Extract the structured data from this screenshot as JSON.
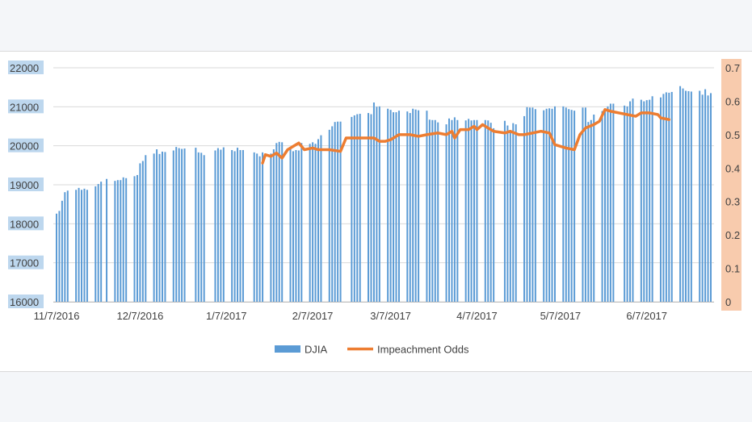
{
  "chart_data": {
    "type": "bar",
    "title": "",
    "xlabel": "",
    "ylabel": "",
    "ylim": [
      16000,
      22000
    ],
    "y_ticks": [
      "22000",
      "21000",
      "20000",
      "19000",
      "18000",
      "17000",
      "16000"
    ],
    "y2lim": [
      0,
      0.7
    ],
    "y2_ticks": [
      "0.7",
      "0.6",
      "0.5",
      "0.4",
      "0.3",
      "0.2",
      "0.1",
      "0"
    ],
    "x_start": "2016-11-07",
    "x_end": "2017-06-30",
    "x_ticks": [
      {
        "date": "2016-11-07",
        "label": "11/7/2016"
      },
      {
        "date": "2016-12-07",
        "label": "12/7/2016"
      },
      {
        "date": "2017-01-07",
        "label": "1/7/2017"
      },
      {
        "date": "2017-02-07",
        "label": "2/7/2017"
      },
      {
        "date": "2017-03-07",
        "label": "3/7/2017"
      },
      {
        "date": "2017-04-07",
        "label": "4/7/2017"
      },
      {
        "date": "2017-05-07",
        "label": "5/7/2017"
      },
      {
        "date": "2017-06-07",
        "label": "6/7/2017"
      }
    ],
    "grid": true,
    "legend_position": "bottom",
    "series": [
      {
        "name": "DJIA",
        "type": "bar",
        "axis": "left",
        "color": "#5b9bd5",
        "points": [
          [
            "2016-11-07",
            18260
          ],
          [
            "2016-11-08",
            18330
          ],
          [
            "2016-11-09",
            18590
          ],
          [
            "2016-11-10",
            18810
          ],
          [
            "2016-11-11",
            18850
          ],
          [
            "2016-11-14",
            18870
          ],
          [
            "2016-11-15",
            18920
          ],
          [
            "2016-11-16",
            18870
          ],
          [
            "2016-11-17",
            18900
          ],
          [
            "2016-11-18",
            18870
          ],
          [
            "2016-11-21",
            18960
          ],
          [
            "2016-11-22",
            19020
          ],
          [
            "2016-11-23",
            19080
          ],
          [
            "2016-11-25",
            19150
          ],
          [
            "2016-11-28",
            19100
          ],
          [
            "2016-11-29",
            19120
          ],
          [
            "2016-11-30",
            19120
          ],
          [
            "2016-12-01",
            19190
          ],
          [
            "2016-12-02",
            19170
          ],
          [
            "2016-12-05",
            19220
          ],
          [
            "2016-12-06",
            19250
          ],
          [
            "2016-12-07",
            19550
          ],
          [
            "2016-12-08",
            19610
          ],
          [
            "2016-12-09",
            19760
          ],
          [
            "2016-12-12",
            19800
          ],
          [
            "2016-12-13",
            19910
          ],
          [
            "2016-12-14",
            19790
          ],
          [
            "2016-12-15",
            19850
          ],
          [
            "2016-12-16",
            19840
          ],
          [
            "2016-12-19",
            19880
          ],
          [
            "2016-12-20",
            19970
          ],
          [
            "2016-12-21",
            19940
          ],
          [
            "2016-12-22",
            19920
          ],
          [
            "2016-12-23",
            19930
          ],
          [
            "2016-12-27",
            19950
          ],
          [
            "2016-12-28",
            19830
          ],
          [
            "2016-12-29",
            19820
          ],
          [
            "2016-12-30",
            19760
          ],
          [
            "2017-01-03",
            19880
          ],
          [
            "2017-01-04",
            19940
          ],
          [
            "2017-01-05",
            19900
          ],
          [
            "2017-01-06",
            19960
          ],
          [
            "2017-01-09",
            19890
          ],
          [
            "2017-01-10",
            19860
          ],
          [
            "2017-01-11",
            19950
          ],
          [
            "2017-01-12",
            19890
          ],
          [
            "2017-01-13",
            19890
          ],
          [
            "2017-01-17",
            19830
          ],
          [
            "2017-01-18",
            19800
          ],
          [
            "2017-01-19",
            19730
          ],
          [
            "2017-01-20",
            19830
          ],
          [
            "2017-01-23",
            19800
          ],
          [
            "2017-01-24",
            19910
          ],
          [
            "2017-01-25",
            20070
          ],
          [
            "2017-01-26",
            20100
          ],
          [
            "2017-01-27",
            20090
          ],
          [
            "2017-01-30",
            19970
          ],
          [
            "2017-01-31",
            19860
          ],
          [
            "2017-02-01",
            19890
          ],
          [
            "2017-02-02",
            19880
          ],
          [
            "2017-02-03",
            20070
          ],
          [
            "2017-02-06",
            20050
          ],
          [
            "2017-02-07",
            20090
          ],
          [
            "2017-02-08",
            20050
          ],
          [
            "2017-02-09",
            20170
          ],
          [
            "2017-02-10",
            20270
          ],
          [
            "2017-02-13",
            20410
          ],
          [
            "2017-02-14",
            20500
          ],
          [
            "2017-02-15",
            20610
          ],
          [
            "2017-02-16",
            20620
          ],
          [
            "2017-02-17",
            20620
          ],
          [
            "2017-02-21",
            20740
          ],
          [
            "2017-02-22",
            20780
          ],
          [
            "2017-02-23",
            20810
          ],
          [
            "2017-02-24",
            20820
          ],
          [
            "2017-02-27",
            20840
          ],
          [
            "2017-02-28",
            20810
          ],
          [
            "2017-03-01",
            21110
          ],
          [
            "2017-03-02",
            21000
          ],
          [
            "2017-03-03",
            21010
          ],
          [
            "2017-03-06",
            20950
          ],
          [
            "2017-03-07",
            20920
          ],
          [
            "2017-03-08",
            20860
          ],
          [
            "2017-03-09",
            20860
          ],
          [
            "2017-03-10",
            20900
          ],
          [
            "2017-03-13",
            20880
          ],
          [
            "2017-03-14",
            20840
          ],
          [
            "2017-03-15",
            20950
          ],
          [
            "2017-03-16",
            20930
          ],
          [
            "2017-03-17",
            20910
          ],
          [
            "2017-03-20",
            20900
          ],
          [
            "2017-03-21",
            20670
          ],
          [
            "2017-03-22",
            20660
          ],
          [
            "2017-03-23",
            20660
          ],
          [
            "2017-03-24",
            20600
          ],
          [
            "2017-03-27",
            20550
          ],
          [
            "2017-03-28",
            20700
          ],
          [
            "2017-03-29",
            20660
          ],
          [
            "2017-03-30",
            20730
          ],
          [
            "2017-03-31",
            20660
          ],
          [
            "2017-04-03",
            20650
          ],
          [
            "2017-04-04",
            20690
          ],
          [
            "2017-04-05",
            20650
          ],
          [
            "2017-04-06",
            20660
          ],
          [
            "2017-04-07",
            20660
          ],
          [
            "2017-04-10",
            20660
          ],
          [
            "2017-04-11",
            20650
          ],
          [
            "2017-04-12",
            20590
          ],
          [
            "2017-04-13",
            20450
          ],
          [
            "2017-04-17",
            20640
          ],
          [
            "2017-04-18",
            20520
          ],
          [
            "2017-04-19",
            20400
          ],
          [
            "2017-04-20",
            20580
          ],
          [
            "2017-04-21",
            20550
          ],
          [
            "2017-04-24",
            20760
          ],
          [
            "2017-04-25",
            20990
          ],
          [
            "2017-04-26",
            20980
          ],
          [
            "2017-04-27",
            20980
          ],
          [
            "2017-04-28",
            20940
          ],
          [
            "2017-05-01",
            20910
          ],
          [
            "2017-05-02",
            20950
          ],
          [
            "2017-05-03",
            20960
          ],
          [
            "2017-05-04",
            20950
          ],
          [
            "2017-05-05",
            21010
          ],
          [
            "2017-05-08",
            21010
          ],
          [
            "2017-05-09",
            20980
          ],
          [
            "2017-05-10",
            20940
          ],
          [
            "2017-05-11",
            20920
          ],
          [
            "2017-05-12",
            20900
          ],
          [
            "2017-05-15",
            20980
          ],
          [
            "2017-05-16",
            20980
          ],
          [
            "2017-05-17",
            20610
          ],
          [
            "2017-05-18",
            20660
          ],
          [
            "2017-05-19",
            20800
          ],
          [
            "2017-05-22",
            20890
          ],
          [
            "2017-05-23",
            20940
          ],
          [
            "2017-05-24",
            21010
          ],
          [
            "2017-05-25",
            21080
          ],
          [
            "2017-05-26",
            21080
          ],
          [
            "2017-05-30",
            21030
          ],
          [
            "2017-05-31",
            21010
          ],
          [
            "2017-06-01",
            21140
          ],
          [
            "2017-06-02",
            21210
          ],
          [
            "2017-06-05",
            21180
          ],
          [
            "2017-06-06",
            21140
          ],
          [
            "2017-06-07",
            21170
          ],
          [
            "2017-06-08",
            21180
          ],
          [
            "2017-06-09",
            21270
          ],
          [
            "2017-06-12",
            21240
          ],
          [
            "2017-06-13",
            21330
          ],
          [
            "2017-06-14",
            21370
          ],
          [
            "2017-06-15",
            21360
          ],
          [
            "2017-06-16",
            21380
          ],
          [
            "2017-06-19",
            21530
          ],
          [
            "2017-06-20",
            21470
          ],
          [
            "2017-06-21",
            21410
          ],
          [
            "2017-06-22",
            21400
          ],
          [
            "2017-06-23",
            21390
          ],
          [
            "2017-06-26",
            21410
          ],
          [
            "2017-06-27",
            21310
          ],
          [
            "2017-06-28",
            21450
          ],
          [
            "2017-06-29",
            21290
          ],
          [
            "2017-06-30",
            21350
          ]
        ]
      },
      {
        "name": "Impeachment Odds",
        "type": "line",
        "axis": "right",
        "color": "#ed7d31",
        "points": [
          [
            "2017-01-20",
            0.415
          ],
          [
            "2017-01-21",
            0.44
          ],
          [
            "2017-01-23",
            0.435
          ],
          [
            "2017-01-25",
            0.445
          ],
          [
            "2017-01-27",
            0.43
          ],
          [
            "2017-01-29",
            0.455
          ],
          [
            "2017-01-31",
            0.465
          ],
          [
            "2017-02-02",
            0.475
          ],
          [
            "2017-02-04",
            0.455
          ],
          [
            "2017-02-07",
            0.46
          ],
          [
            "2017-02-09",
            0.455
          ],
          [
            "2017-02-11",
            0.455
          ],
          [
            "2017-02-13",
            0.455
          ],
          [
            "2017-02-17",
            0.45
          ],
          [
            "2017-02-19",
            0.49
          ],
          [
            "2017-02-22",
            0.49
          ],
          [
            "2017-02-26",
            0.49
          ],
          [
            "2017-03-01",
            0.49
          ],
          [
            "2017-03-03",
            0.48
          ],
          [
            "2017-03-05",
            0.48
          ],
          [
            "2017-03-07",
            0.485
          ],
          [
            "2017-03-10",
            0.5
          ],
          [
            "2017-03-14",
            0.5
          ],
          [
            "2017-03-17",
            0.495
          ],
          [
            "2017-03-20",
            0.5
          ],
          [
            "2017-03-24",
            0.505
          ],
          [
            "2017-03-27",
            0.5
          ],
          [
            "2017-03-29",
            0.51
          ],
          [
            "2017-03-30",
            0.49
          ],
          [
            "2017-04-01",
            0.515
          ],
          [
            "2017-04-04",
            0.515
          ],
          [
            "2017-04-06",
            0.525
          ],
          [
            "2017-04-07",
            0.515
          ],
          [
            "2017-04-09",
            0.53
          ],
          [
            "2017-04-13",
            0.51
          ],
          [
            "2017-04-17",
            0.505
          ],
          [
            "2017-04-19",
            0.51
          ],
          [
            "2017-04-22",
            0.5
          ],
          [
            "2017-04-24",
            0.5
          ],
          [
            "2017-04-27",
            0.505
          ],
          [
            "2017-04-30",
            0.51
          ],
          [
            "2017-05-03",
            0.505
          ],
          [
            "2017-05-05",
            0.47
          ],
          [
            "2017-05-09",
            0.46
          ],
          [
            "2017-05-12",
            0.455
          ],
          [
            "2017-05-14",
            0.5
          ],
          [
            "2017-05-16",
            0.52
          ],
          [
            "2017-05-19",
            0.53
          ],
          [
            "2017-05-21",
            0.54
          ],
          [
            "2017-05-23",
            0.575
          ],
          [
            "2017-05-25",
            0.57
          ],
          [
            "2017-05-28",
            0.565
          ],
          [
            "2017-05-31",
            0.56
          ],
          [
            "2017-06-03",
            0.555
          ],
          [
            "2017-06-05",
            0.565
          ],
          [
            "2017-06-08",
            0.565
          ],
          [
            "2017-06-11",
            0.56
          ],
          [
            "2017-06-12",
            0.55
          ],
          [
            "2017-06-15",
            0.545
          ]
        ]
      }
    ]
  }
}
